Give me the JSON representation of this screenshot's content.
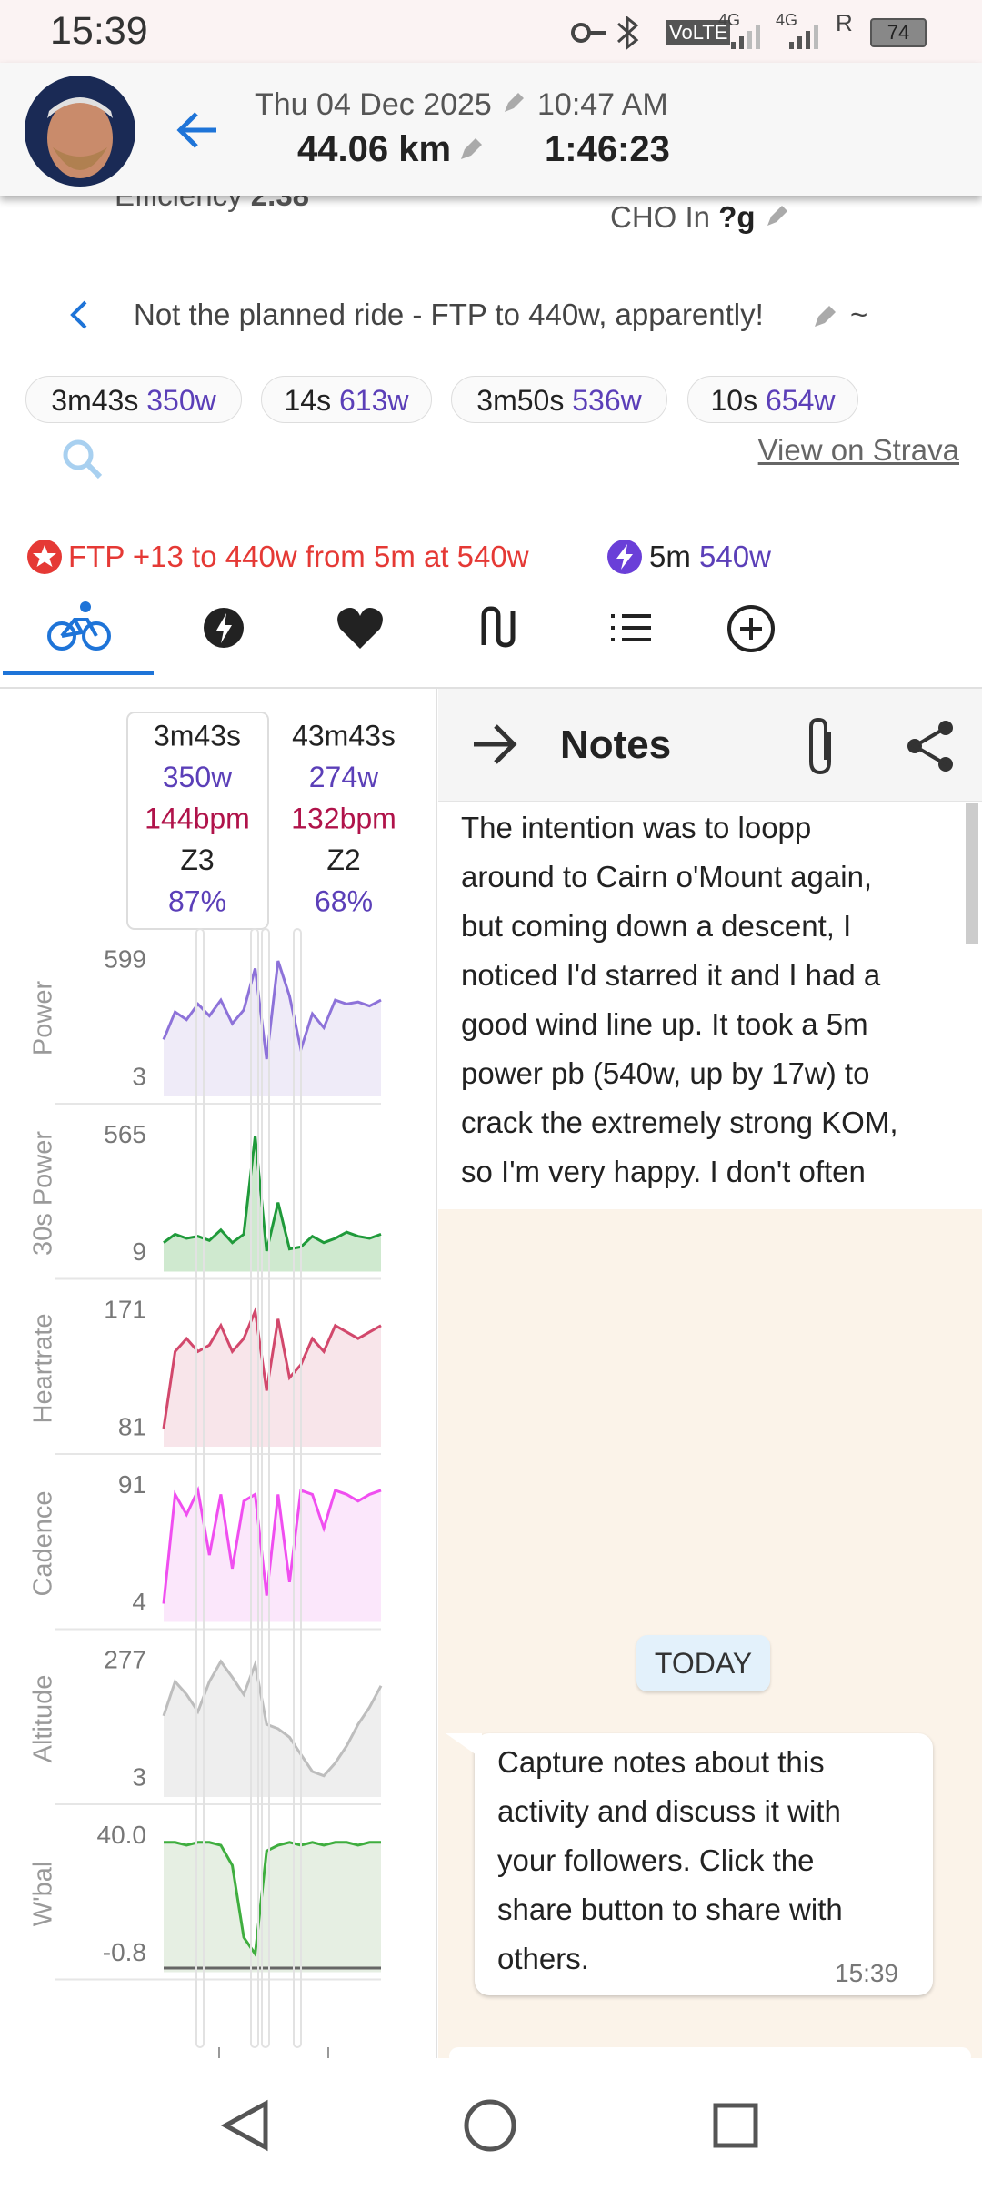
{
  "status_bar": {
    "time": "15:39",
    "volte": "VoLTE",
    "network_1": "4G",
    "network_2": "4G",
    "roaming": "R",
    "battery": "74"
  },
  "header": {
    "date": "Thu 04 Dec 2025",
    "time": "10:47 AM",
    "distance": "44.06 km",
    "duration": "1:46:23"
  },
  "stats": {
    "efficiency_label": "Efficiency",
    "efficiency_value": "2.38",
    "cho_label": "CHO In",
    "cho_value": "?g"
  },
  "activity_title": "Not the planned ride - FTP to 440w, apparently!",
  "title_suffix": "~",
  "chips": [
    {
      "duration": "3m43s",
      "power": "350w"
    },
    {
      "duration": "14s",
      "power": "613w"
    },
    {
      "duration": "3m50s",
      "power": "536w"
    },
    {
      "duration": "10s",
      "power": "654w"
    }
  ],
  "strava_link": "View on Strava",
  "ftp_notice": "FTP +13 to 440w from 5m at 540w",
  "peak": {
    "duration": "5m",
    "power": "540w"
  },
  "tooltip": [
    {
      "time": "3m43s",
      "power": "350w",
      "heartrate": "144bpm",
      "zone": "Z3",
      "percent": "87%"
    },
    {
      "time": "43m43s",
      "power": "274w",
      "heartrate": "132bpm",
      "zone": "Z2",
      "percent": "68%"
    }
  ],
  "chart_panels": [
    {
      "label": "Power",
      "color": "#8d72d9",
      "fill": "#efebf8",
      "ylim": [
        3,
        599
      ],
      "yticks": [
        599,
        3
      ],
      "values": [
        200,
        340,
        300,
        380,
        320,
        400,
        280,
        350,
        560,
        100,
        599,
        420,
        150,
        330,
        260,
        400,
        380,
        390,
        370,
        400
      ]
    },
    {
      "label": "30s Power",
      "color": "#1f9a3a",
      "fill": "#cfe9cf",
      "ylim": [
        9,
        565
      ],
      "yticks": [
        565,
        9
      ],
      "values": [
        60,
        100,
        80,
        90,
        70,
        120,
        60,
        100,
        565,
        20,
        250,
        30,
        40,
        90,
        60,
        80,
        110,
        90,
        80,
        100
      ]
    },
    {
      "label": "Heartrate",
      "color": "#d2486c",
      "fill": "#f8e5ea",
      "ylim": [
        81,
        171
      ],
      "yticks": [
        171,
        81
      ],
      "values": [
        81,
        140,
        150,
        140,
        145,
        160,
        140,
        150,
        171,
        110,
        165,
        120,
        130,
        150,
        140,
        160,
        155,
        150,
        155,
        160
      ]
    },
    {
      "label": "Cadence",
      "color": "#f04ef0",
      "fill": "#fbe7fb",
      "ylim": [
        4,
        91
      ],
      "yticks": [
        91,
        4
      ],
      "values": [
        4,
        85,
        70,
        88,
        40,
        85,
        30,
        80,
        85,
        10,
        85,
        20,
        88,
        85,
        60,
        88,
        85,
        80,
        85,
        88
      ]
    },
    {
      "label": "Altitude",
      "color": "#bdbdbd",
      "fill": "#eeeeee",
      "ylim": [
        3,
        277
      ],
      "yticks": [
        277,
        3
      ],
      "values": [
        150,
        230,
        200,
        160,
        230,
        277,
        240,
        200,
        270,
        130,
        120,
        100,
        60,
        20,
        10,
        40,
        80,
        130,
        170,
        220
      ]
    },
    {
      "label": "W'bal",
      "color": "#3fae3f",
      "fill": "#e6efe3",
      "ylim": [
        -0.8,
        40
      ],
      "yticks": [
        {
          "value": 40,
          "label": "40.0"
        },
        -0.8
      ],
      "values": [
        38,
        38,
        37,
        38,
        38,
        37,
        30,
        5,
        -0.8,
        35,
        37,
        38,
        37,
        38,
        37,
        38,
        38,
        37,
        38,
        38
      ]
    }
  ],
  "notes": {
    "title": "Notes",
    "lines": [
      "The intention was to loopp",
      "around to Cairn o'Mount again,",
      "but coming down a descent, I",
      "noticed I'd starred it and I had a",
      "good wind line up. It took a 5m",
      "power pb (540w, up by 17w) to",
      "crack the extremely strong KOM,",
      "so I'm very happy. I don't often"
    ]
  },
  "chat": {
    "day": "TODAY",
    "lines": [
      "Capture notes about this",
      "activity and discuss it with",
      "your followers. Click the",
      "share button to share with",
      "others."
    ],
    "time": "15:39"
  }
}
